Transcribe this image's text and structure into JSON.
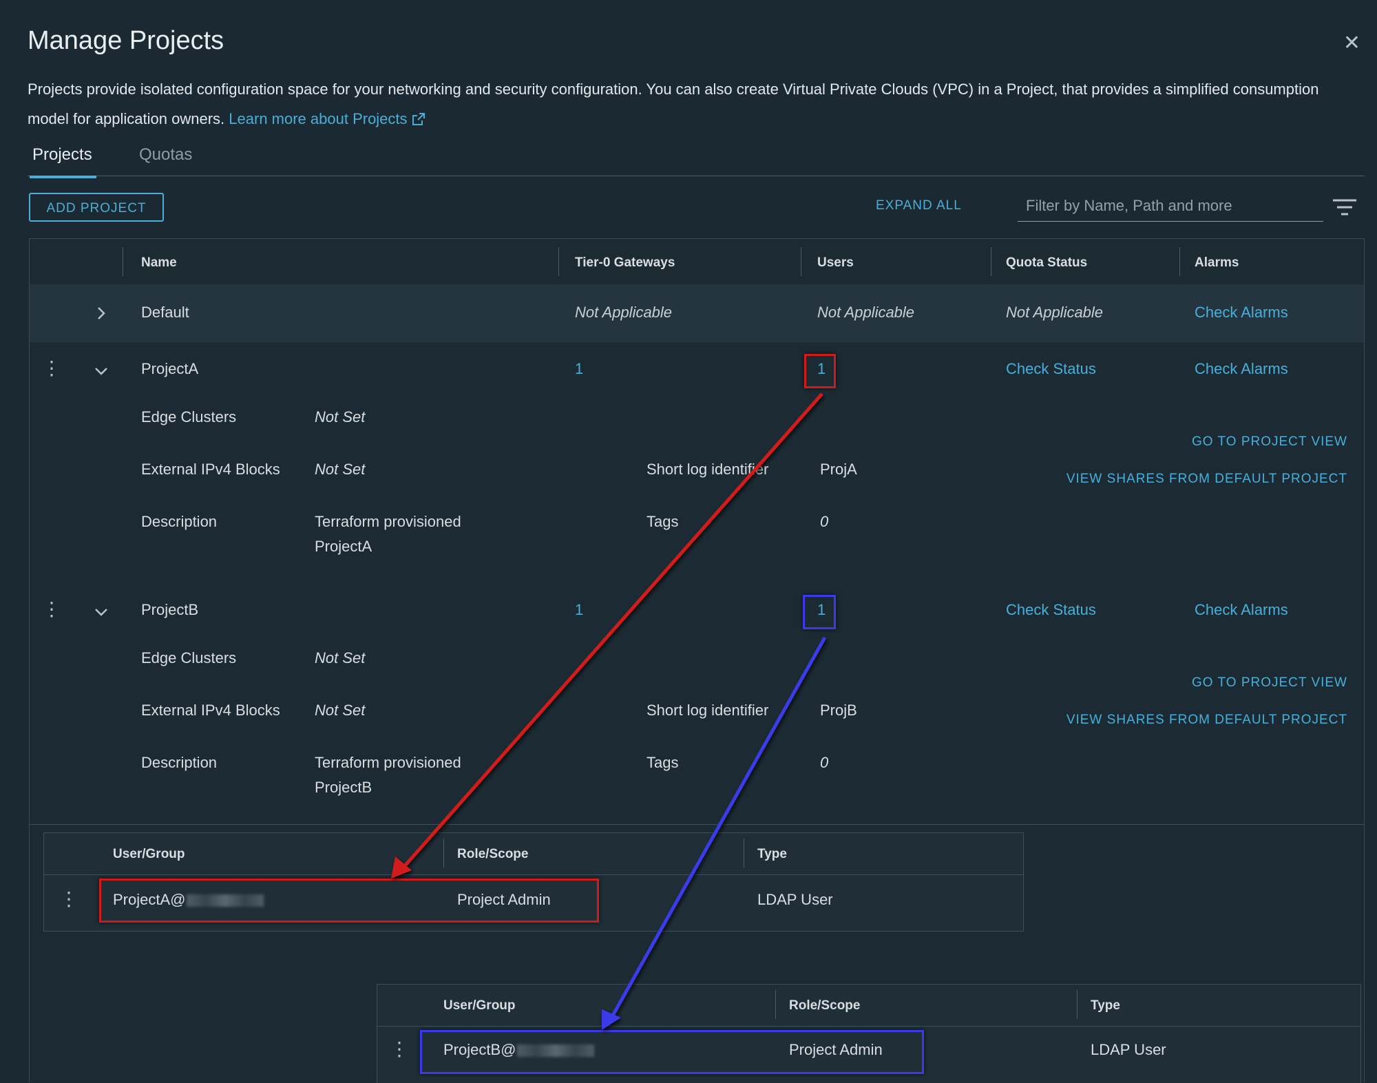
{
  "dialog": {
    "title": "Manage Projects",
    "description": "Projects provide isolated configuration space for your networking and security configuration. You can also create Virtual Private Clouds (VPC) in a Project, that provides a simplified consumption model for application owners.",
    "learn_more": "Learn more about Projects",
    "close_icon": "close-icon"
  },
  "tabs": [
    {
      "label": "Projects",
      "active": true
    },
    {
      "label": "Quotas",
      "active": false
    }
  ],
  "toolbar": {
    "add_project": "ADD PROJECT",
    "expand_all": "EXPAND ALL",
    "filter_placeholder": "Filter by Name, Path and more",
    "filter_icon": "filter-icon"
  },
  "table": {
    "columns": [
      "Name",
      "Tier-0 Gateways",
      "Users",
      "Quota Status",
      "Alarms"
    ],
    "rows": [
      {
        "name": "Default",
        "tier0": "Not Applicable",
        "users": "Not Applicable",
        "quota": "Not Applicable",
        "alarms": "Check Alarms"
      },
      {
        "name": "ProjectA",
        "tier0": "1",
        "users": "1",
        "quota": "Check Status",
        "alarms": "Check Alarms",
        "details": {
          "edge_clusters_label": "Edge Clusters",
          "edge_clusters": "Not Set",
          "ipv4_label": "External IPv4 Blocks",
          "ipv4": "Not Set",
          "description_label": "Description",
          "description_line1": "Terraform provisioned",
          "description_line2": "ProjectA",
          "short_log_label": "Short log identifier",
          "short_log": "ProjA",
          "tags_label": "Tags",
          "tags": "0",
          "go_to_project": "GO TO PROJECT VIEW",
          "view_shares": "VIEW SHARES FROM DEFAULT PROJECT"
        }
      },
      {
        "name": "ProjectB",
        "tier0": "1",
        "users": "1",
        "quota": "Check Status",
        "alarms": "Check Alarms",
        "details": {
          "edge_clusters_label": "Edge Clusters",
          "edge_clusters": "Not Set",
          "ipv4_label": "External IPv4 Blocks",
          "ipv4": "Not Set",
          "description_label": "Description",
          "description_line1": "Terraform provisioned",
          "description_line2": "ProjectB",
          "short_log_label": "Short log identifier",
          "short_log": "ProjB",
          "tags_label": "Tags",
          "tags": "0",
          "go_to_project": "GO TO PROJECT VIEW",
          "view_shares": "VIEW SHARES FROM DEFAULT PROJECT"
        }
      }
    ]
  },
  "users_tables": [
    {
      "columns": [
        "User/Group",
        "Role/Scope",
        "Type"
      ],
      "row": {
        "user": "ProjectA@",
        "role": "Project Admin",
        "type": "LDAP User"
      }
    },
    {
      "columns": [
        "User/Group",
        "Role/Scope",
        "Type"
      ],
      "row": {
        "user": "ProjectB@",
        "role": "Project Admin",
        "type": "LDAP User"
      }
    }
  ],
  "annotations": {
    "projectA_color": "#d11a1a",
    "projectB_color": "#3a3ae8"
  }
}
